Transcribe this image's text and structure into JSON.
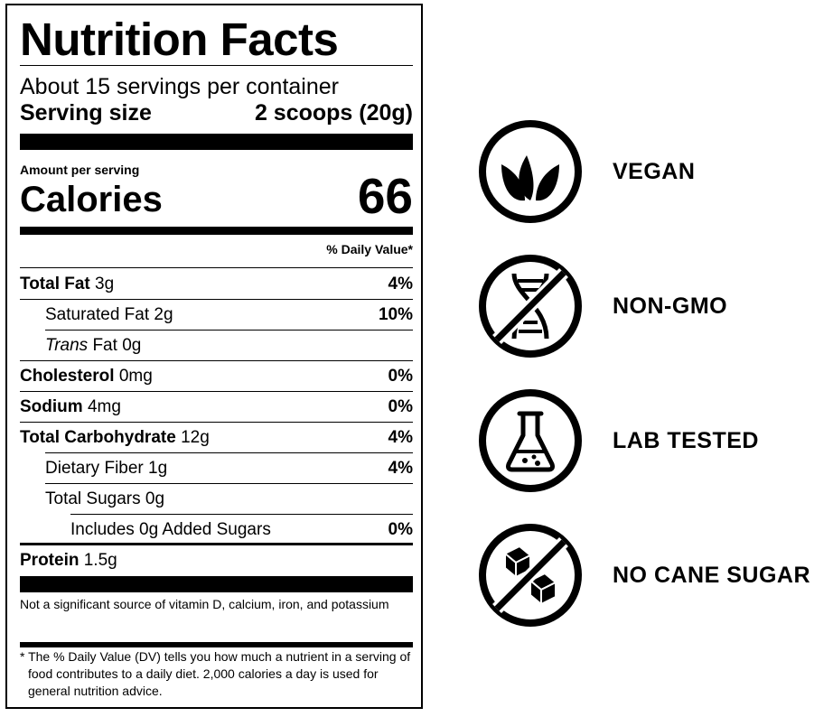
{
  "nutrition": {
    "title": "Nutrition Facts",
    "servings_per_container": "About 15 servings per container",
    "serving_size_label": "Serving size",
    "serving_size_value": "2 scoops (20g)",
    "amount_per_serving": "Amount per serving",
    "calories_label": "Calories",
    "calories_value": "66",
    "daily_value_header": "% Daily Value*",
    "rows": [
      {
        "name": "Total Fat",
        "amount": "3g",
        "dv": "4%"
      },
      {
        "name": "Saturated Fat",
        "amount": "2g",
        "dv": "10%"
      },
      {
        "name": "Trans",
        "name_rest": "Fat",
        "amount": "0g",
        "dv": ""
      },
      {
        "name": "Cholesterol",
        "amount": "0mg",
        "dv": "0%"
      },
      {
        "name": "Sodium",
        "amount": "4mg",
        "dv": "0%"
      },
      {
        "name": "Total Carbohydrate",
        "amount": "12g",
        "dv": "4%"
      },
      {
        "name": "Dietary Fiber",
        "amount": "1g",
        "dv": "4%"
      },
      {
        "name": "Total Sugars",
        "amount": "0g",
        "dv": ""
      },
      {
        "name": "Includes 0g Added Sugars",
        "amount": "",
        "dv": "0%"
      },
      {
        "name": "Protein",
        "amount": "1.5g",
        "dv": ""
      }
    ],
    "vitamin_note": "Not a significant source of vitamin D, calcium, iron, and potassium",
    "footnote": "* The % Daily Value (DV) tells you how much a nutrient in a serving of food contributes to a daily diet. 2,000 calories a day is used for general nutrition advice."
  },
  "badges": [
    {
      "label": "VEGAN",
      "icon": "leaf-icon"
    },
    {
      "label": "NON-GMO",
      "icon": "crossed-dna-icon"
    },
    {
      "label": "LAB TESTED",
      "icon": "flask-icon"
    },
    {
      "label": "NO CANE SUGAR",
      "icon": "crossed-sugar-cubes-icon"
    }
  ]
}
